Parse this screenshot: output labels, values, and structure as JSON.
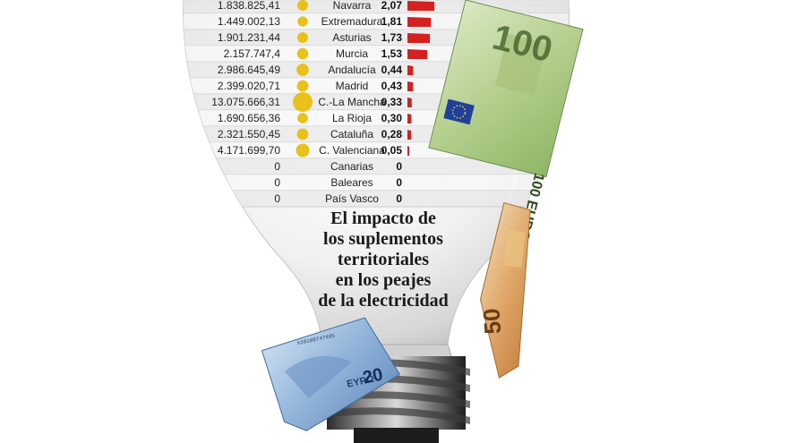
{
  "chart_data": {
    "type": "bar",
    "title_lines": [
      "El impacto de",
      "los suplementos",
      "territoriales",
      "en los peajes",
      "de la electricidad"
    ],
    "rows": [
      {
        "amount": "1.838.825,41",
        "region": "Navarra",
        "value_label": "2,07",
        "value": 2.07
      },
      {
        "amount": "1.449.002,13",
        "region": "Extremadura",
        "value_label": "1,81",
        "value": 1.81
      },
      {
        "amount": "1.901.231,44",
        "region": "Asturias",
        "value_label": "1,73",
        "value": 1.73
      },
      {
        "amount": "2.157.747,4",
        "region": "Murcia",
        "value_label": "1,53",
        "value": 1.53
      },
      {
        "amount": "2.986.645,49",
        "region": "Andalucía",
        "value_label": "0,44",
        "value": 0.44
      },
      {
        "amount": "2.399.020,71",
        "region": "Madrid",
        "value_label": "0,43",
        "value": 0.43
      },
      {
        "amount": "13.075.666,31",
        "region": "C.-La Mancha",
        "value_label": "0,33",
        "value": 0.33
      },
      {
        "amount": "1.690.656,36",
        "region": "La Rioja",
        "value_label": "0,30",
        "value": 0.3
      },
      {
        "amount": "2.321.550,45",
        "region": "Cataluña",
        "value_label": "0,28",
        "value": 0.28
      },
      {
        "amount": "4.171.699,70",
        "region": "C. Valenciana",
        "value_label": "0,05",
        "value": 0.05
      },
      {
        "amount": "0",
        "region": "Canarias",
        "value_label": "0",
        "value": 0
      },
      {
        "amount": "0",
        "region": "Baleares",
        "value_label": "0",
        "value": 0
      },
      {
        "amount": "0",
        "region": "País Vasco",
        "value_label": "0",
        "value": 0
      }
    ],
    "bar_color": "#d61f1f",
    "bubble_color": "#e8c21a"
  },
  "banknotes": {
    "note_100": "100",
    "note_100_side": "100 EURO",
    "note_50": "50",
    "note_20": "20",
    "note_20_text": "EYPΩ",
    "serial": "X20108747495"
  }
}
